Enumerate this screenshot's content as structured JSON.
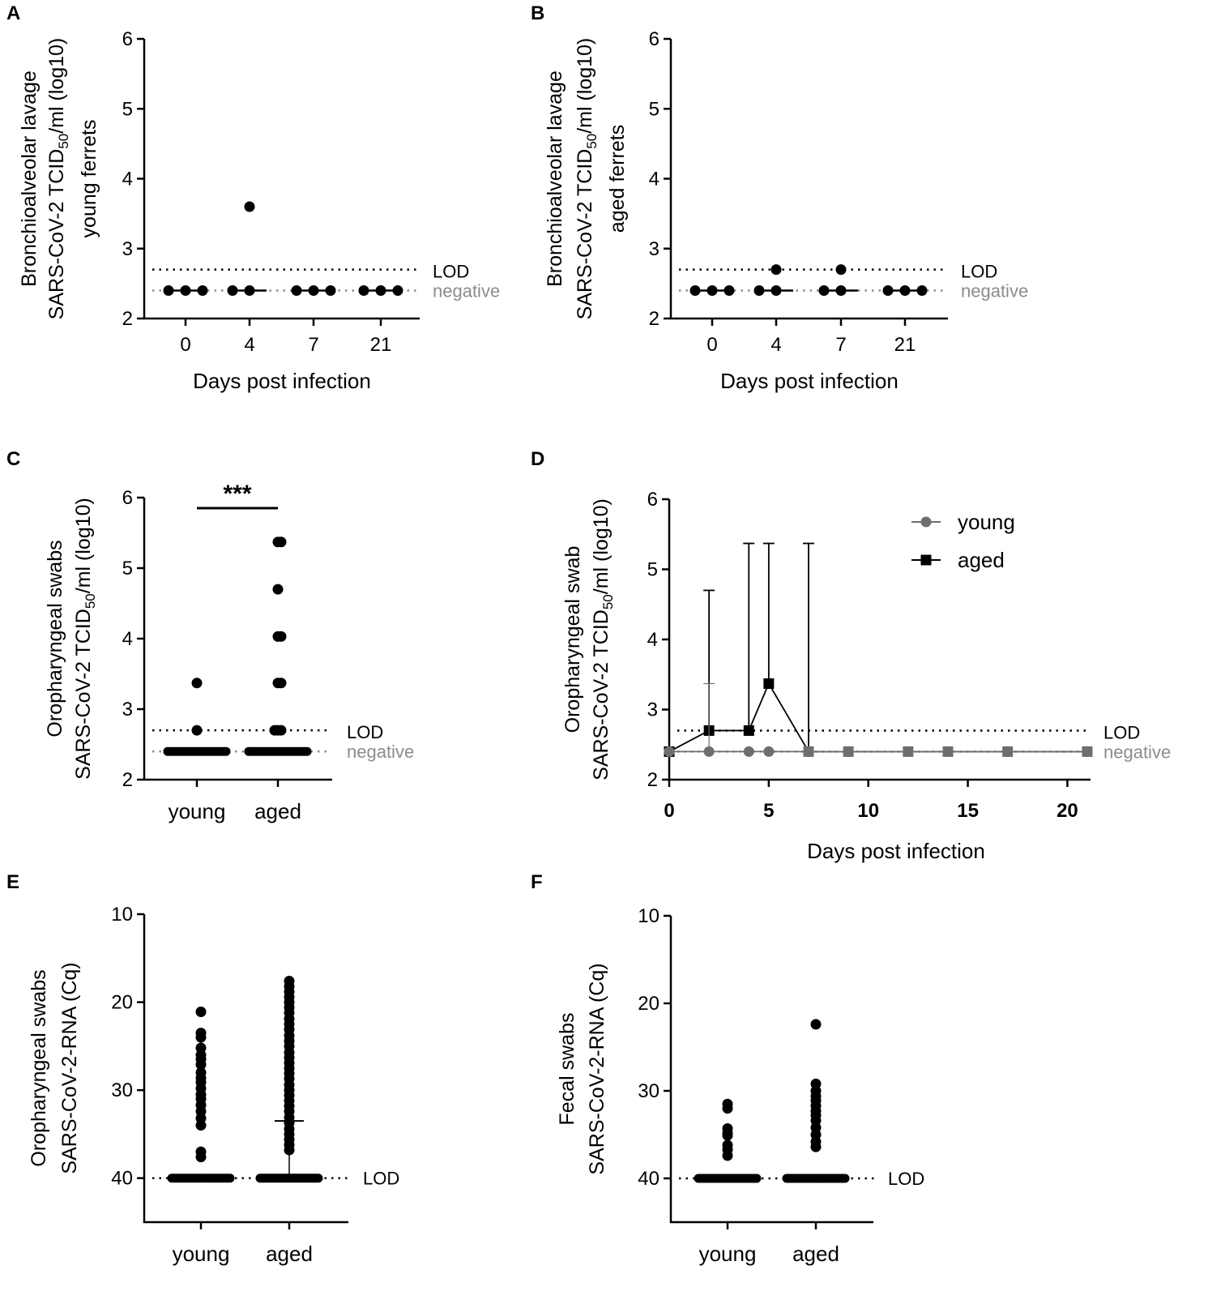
{
  "colors": {
    "dark": "#000000",
    "grey": "#6e6e6e",
    "ref_grey": "#8c8c8c"
  },
  "chart_data": [
    {
      "id": "A",
      "panel_label": "A",
      "type": "scatter",
      "title": "",
      "ylabel": [
        "Bronchioalveolar lavage",
        "SARS-CoV-2 TCID",
        "50",
        "/ml (log10)",
        "young ferrets"
      ],
      "xlabel": "Days post infection",
      "ylim": [
        2,
        6
      ],
      "yticks": [
        "2",
        "3",
        "4",
        "5",
        "6"
      ],
      "categories": [
        "0",
        "4",
        "7",
        "21"
      ],
      "points": [
        {
          "cat": 0,
          "values": [
            2.4,
            2.4,
            2.4
          ]
        },
        {
          "cat": 1,
          "values": [
            2.4,
            2.4,
            3.6
          ]
        },
        {
          "cat": 2,
          "values": [
            2.4,
            2.4,
            2.4
          ]
        },
        {
          "cat": 3,
          "values": [
            2.4,
            2.4,
            2.4
          ]
        }
      ],
      "medians": [
        2.4,
        2.4,
        2.4,
        2.4
      ],
      "ref_lines": [
        {
          "label": "LOD",
          "value": 2.7,
          "color": "dark"
        },
        {
          "label": "negative",
          "value": 2.4,
          "color": "grey"
        }
      ]
    },
    {
      "id": "B",
      "panel_label": "B",
      "type": "scatter",
      "title": "",
      "ylabel": [
        "Bronchioalveolar lavage",
        "SARS-CoV-2 TCID",
        "50",
        "/ml (log10)",
        "aged ferrets"
      ],
      "xlabel": "Days post infection",
      "ylim": [
        2,
        6
      ],
      "yticks": [
        "2",
        "3",
        "4",
        "5",
        "6"
      ],
      "categories": [
        "0",
        "4",
        "7",
        "21"
      ],
      "points": [
        {
          "cat": 0,
          "values": [
            2.4,
            2.4,
            2.4
          ]
        },
        {
          "cat": 1,
          "values": [
            2.4,
            2.4,
            2.7
          ]
        },
        {
          "cat": 2,
          "values": [
            2.4,
            2.4,
            2.7
          ]
        },
        {
          "cat": 3,
          "values": [
            2.4,
            2.4,
            2.4
          ]
        }
      ],
      "medians": [
        2.4,
        2.4,
        2.4,
        2.4
      ],
      "ref_lines": [
        {
          "label": "LOD",
          "value": 2.7,
          "color": "dark"
        },
        {
          "label": "negative",
          "value": 2.4,
          "color": "grey"
        }
      ]
    },
    {
      "id": "C",
      "panel_label": "C",
      "type": "scatter",
      "title": "",
      "ylabel": [
        "Oropharyngeal swabs",
        "SARS-CoV-2 TCID",
        "50",
        "/ml (log10)"
      ],
      "xlabel": "",
      "ylim": [
        2,
        6
      ],
      "yticks": [
        "2",
        "3",
        "4",
        "5",
        "6"
      ],
      "categories": [
        "young",
        "aged"
      ],
      "groups": [
        {
          "name": "young",
          "values": [
            3.37,
            2.7
          ],
          "baseline": 2.4,
          "baseline_count": 28
        },
        {
          "name": "aged",
          "values": [
            5.37,
            5.37,
            4.7,
            4.03,
            4.03,
            3.37,
            3.37,
            2.7,
            2.7,
            2.7
          ],
          "baseline": 2.4,
          "baseline_count": 30
        }
      ],
      "significance": "***",
      "ref_lines": [
        {
          "label": "LOD",
          "value": 2.7,
          "color": "dark"
        },
        {
          "label": "negative",
          "value": 2.4,
          "color": "grey"
        }
      ]
    },
    {
      "id": "D",
      "panel_label": "D",
      "type": "line",
      "title": "",
      "ylabel": [
        "Oropharyngeal swab",
        "SARS-CoV-2 TCID",
        "50",
        "/ml (log10)"
      ],
      "xlabel": "Days post infection",
      "xlim": [
        0,
        21
      ],
      "xticks": [
        "0",
        "5",
        "10",
        "15",
        "20"
      ],
      "ylim": [
        2,
        6
      ],
      "yticks": [
        "2",
        "3",
        "4",
        "5",
        "6"
      ],
      "legend_position": "top-right",
      "series": [
        {
          "name": "aged",
          "marker": "square",
          "color": "dark",
          "x": [
            0,
            2,
            4,
            5,
            7,
            9,
            12,
            14,
            17,
            21
          ],
          "y": [
            2.4,
            2.7,
            2.7,
            3.37,
            2.4,
            2.4,
            2.4,
            2.4,
            2.4,
            2.4
          ],
          "error_upper": [
            null,
            4.7,
            5.37,
            5.37,
            5.37,
            null,
            null,
            null,
            null,
            null
          ]
        },
        {
          "name": "young",
          "marker": "circle",
          "color": "grey",
          "x": [
            0,
            2,
            4,
            5,
            7,
            9,
            12,
            14,
            17,
            21
          ],
          "y": [
            2.4,
            2.4,
            2.4,
            2.4,
            2.4,
            2.4,
            2.4,
            2.4,
            2.4,
            2.4
          ],
          "error_upper": [
            null,
            3.37,
            null,
            null,
            null,
            null,
            null,
            null,
            null,
            null
          ]
        }
      ],
      "ref_lines": [
        {
          "label": "LOD",
          "value": 2.7,
          "color": "dark"
        },
        {
          "label": "negative",
          "value": 2.4,
          "color": "grey"
        }
      ]
    },
    {
      "id": "E",
      "panel_label": "E",
      "type": "scatter",
      "title": "",
      "ylabel": [
        "Oropharyngeal swabs",
        "SARS-CoV-2-RNA (Cq)"
      ],
      "xlabel": "",
      "ylim": [
        45,
        10
      ],
      "yticks": [
        "10",
        "20",
        "30",
        "40"
      ],
      "categories": [
        "young",
        "aged"
      ],
      "groups": [
        {
          "name": "young",
          "values": [
            21.1,
            23.5,
            24,
            25.2,
            26,
            26.5,
            27.1,
            28,
            28.6,
            29.1,
            29.8,
            30.5,
            31,
            31.7,
            32.4,
            33.2,
            34,
            37,
            37.6
          ],
          "baseline": 40,
          "baseline_count": 34,
          "median_bar": null
        },
        {
          "name": "aged",
          "values": [
            17.6,
            18.2,
            18.8,
            19.4,
            20,
            20.6,
            21.2,
            21.9,
            22.5,
            23.1,
            23.8,
            24.4,
            25,
            25.7,
            26.3,
            26.9,
            27.5,
            28.1,
            28.7,
            29.4,
            30,
            30.6,
            31.2,
            31.8,
            32.4,
            33.1,
            33.7,
            34.4,
            35,
            35.6,
            36.2,
            36.8
          ],
          "baseline": 40,
          "baseline_count": 42,
          "median_bar": 33.5,
          "error_top": 17.6
        }
      ],
      "ref_lines": [
        {
          "label": "LOD",
          "value": 40,
          "color": "dark"
        }
      ]
    },
    {
      "id": "F",
      "panel_label": "F",
      "type": "scatter",
      "title": "",
      "ylabel": [
        "Fecal swabs",
        "SARS-CoV-2-RNA (Cq)"
      ],
      "xlabel": "",
      "ylim": [
        45,
        10
      ],
      "yticks": [
        "10",
        "20",
        "30",
        "40"
      ],
      "categories": [
        "young",
        "aged"
      ],
      "groups": [
        {
          "name": "young",
          "values": [
            31.5,
            32,
            34.3,
            34.8,
            35.1,
            36.2,
            36.7,
            37.4
          ],
          "baseline": 40,
          "baseline_count": 34,
          "median_bar": null
        },
        {
          "name": "aged",
          "values": [
            22.4,
            29.2,
            30,
            30.6,
            31.1,
            31.7,
            32.3,
            32.8,
            33.4,
            34.2,
            35,
            35.8,
            36.4
          ],
          "baseline": 40,
          "baseline_count": 40,
          "median_bar": null
        }
      ],
      "ref_lines": [
        {
          "label": "LOD",
          "value": 40,
          "color": "dark"
        }
      ]
    }
  ]
}
